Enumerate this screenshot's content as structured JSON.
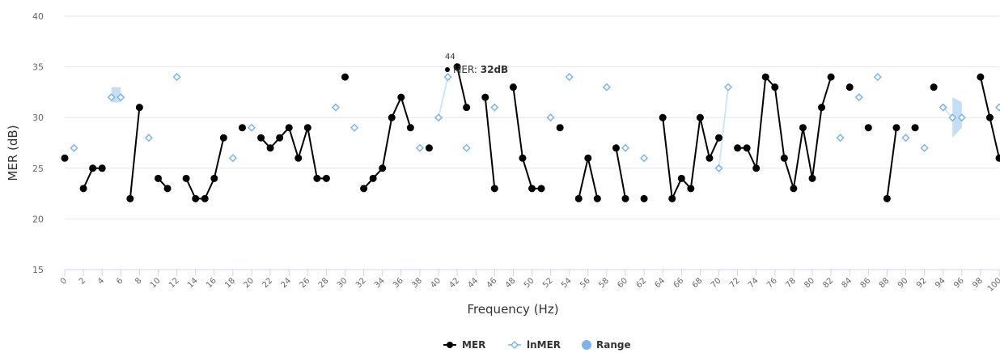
{
  "chart_data": {
    "type": "line",
    "title": "",
    "xlabel": "Frequency (Hz)",
    "ylabel": "MER (dB)",
    "ylim": [
      15,
      40
    ],
    "yticks": [
      15,
      20,
      25,
      30,
      35,
      40
    ],
    "xlim": [
      0,
      100
    ],
    "xticks": [
      "0",
      "2",
      "4",
      "6",
      "8",
      "10",
      "12",
      "14",
      "16",
      "18",
      "20",
      "22",
      "24",
      "26",
      "28",
      "30",
      "32",
      "34",
      "36",
      "38",
      "40",
      "42",
      "44",
      "46",
      "48",
      "50",
      "52",
      "54",
      "56",
      "58",
      "60",
      "62",
      "64",
      "66",
      "68",
      "70",
      "72",
      "74",
      "76",
      "78",
      "80",
      "82",
      "84",
      "86",
      "88",
      "90",
      "92",
      "94",
      "96",
      "98",
      "100"
    ],
    "grid": true,
    "legend_position": "bottom-center",
    "series": [
      {
        "name": "MER",
        "color": "#000000",
        "marker": "circle",
        "values": [
          26,
          null,
          23,
          25,
          25,
          null,
          null,
          22,
          31,
          null,
          24,
          23,
          null,
          24,
          22,
          22,
          24,
          28,
          null,
          29,
          null,
          28,
          27,
          28,
          29,
          26,
          29,
          24,
          24,
          null,
          34,
          null,
          23,
          24,
          25,
          30,
          32,
          29,
          null,
          27,
          null,
          null,
          35,
          31,
          null,
          32,
          23,
          null,
          33,
          26,
          23,
          23,
          null,
          29,
          null,
          22,
          26,
          22,
          null,
          27,
          22,
          null,
          22,
          null,
          30,
          22,
          24,
          23,
          30,
          26,
          28,
          null,
          27,
          27,
          25,
          34,
          33,
          26,
          23,
          29,
          24,
          31,
          34,
          null,
          33,
          null,
          29,
          null,
          22,
          29,
          null,
          29,
          null,
          33,
          null,
          null,
          null,
          null,
          34,
          30,
          26
        ]
      },
      {
        "name": "lnMER",
        "color": "#7cb5ec",
        "marker": "diamond",
        "values": [
          null,
          27,
          null,
          null,
          null,
          32,
          32,
          null,
          null,
          28,
          null,
          null,
          34,
          null,
          null,
          null,
          null,
          null,
          26,
          null,
          29,
          null,
          null,
          null,
          null,
          null,
          null,
          null,
          null,
          31,
          null,
          29,
          null,
          null,
          null,
          null,
          null,
          null,
          27,
          null,
          30,
          34,
          null,
          27,
          null,
          null,
          31,
          null,
          null,
          null,
          null,
          null,
          30,
          null,
          34,
          null,
          null,
          null,
          33,
          null,
          27,
          null,
          26,
          null,
          null,
          null,
          null,
          null,
          null,
          null,
          25,
          33,
          null,
          null,
          null,
          null,
          null,
          null,
          null,
          null,
          null,
          null,
          null,
          28,
          null,
          32,
          null,
          34,
          null,
          null,
          28,
          null,
          27,
          null,
          31,
          30,
          30,
          null,
          null,
          null,
          31
        ]
      },
      {
        "name": "Range",
        "color": "#7cb5ec",
        "type": "arearange",
        "ranges": [
          [
            5,
            31.5,
            33
          ],
          [
            6,
            31.5,
            33
          ],
          [
            95,
            28,
            32
          ],
          [
            96,
            29,
            31.5
          ]
        ]
      }
    ],
    "tooltip": {
      "x": 44,
      "series": "MER",
      "header": "44",
      "label": "MER: ",
      "value": "32dB"
    }
  }
}
